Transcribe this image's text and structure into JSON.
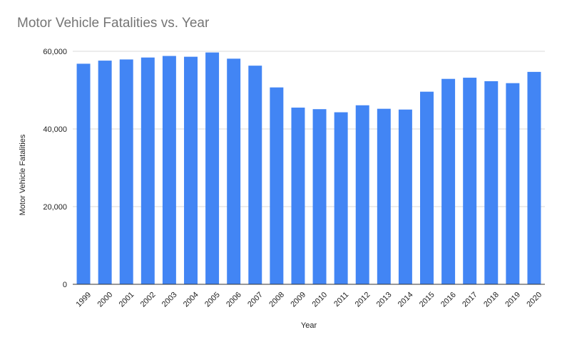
{
  "chart_data": {
    "type": "bar",
    "title": "Motor Vehicle Fatalities vs. Year",
    "xlabel": "Year",
    "ylabel": "Motor Vehicle Fatalities",
    "ylim": [
      0,
      60000
    ],
    "yticks": [
      "0",
      "20,000",
      "40,000",
      "60,000"
    ],
    "ytick_values": [
      0,
      20000,
      40000,
      60000
    ],
    "grid": true,
    "bar_color": "#4285f4",
    "categories": [
      "1999",
      "2000",
      "2001",
      "2002",
      "2003",
      "2004",
      "2005",
      "2006",
      "2007",
      "2008",
      "2009",
      "2010",
      "2011",
      "2012",
      "2013",
      "2014",
      "2015",
      "2016",
      "2017",
      "2018",
      "2019",
      "2020"
    ],
    "values": [
      56800,
      57600,
      57900,
      58400,
      58800,
      58600,
      59700,
      58100,
      56300,
      50700,
      45500,
      45100,
      44300,
      46100,
      45200,
      45000,
      49600,
      52900,
      53200,
      52300,
      51800,
      54700
    ]
  }
}
